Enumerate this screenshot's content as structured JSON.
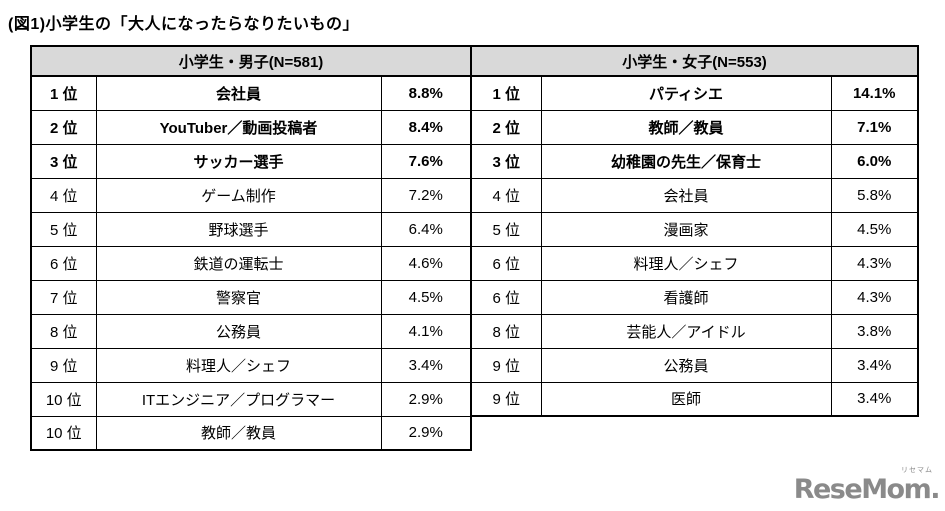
{
  "page": {
    "title": "(図1)小学生の「大人になったらなりたいもの」"
  },
  "colors": {
    "header_bg": "#d9d9d9",
    "border": "#000000",
    "logo_gray": "#8a8a8a"
  },
  "tables": [
    {
      "header": "小学生・男子(N=581)",
      "rows": [
        {
          "rank": "1 位",
          "job": "会社員",
          "pct": "8.8%",
          "bold": true
        },
        {
          "rank": "2 位",
          "job": "YouTuber／動画投稿者",
          "pct": "8.4%",
          "bold": true
        },
        {
          "rank": "3 位",
          "job": "サッカー選手",
          "pct": "7.6%",
          "bold": true
        },
        {
          "rank": "4 位",
          "job": "ゲーム制作",
          "pct": "7.2%",
          "bold": false
        },
        {
          "rank": "5 位",
          "job": "野球選手",
          "pct": "6.4%",
          "bold": false
        },
        {
          "rank": "6 位",
          "job": "鉄道の運転士",
          "pct": "4.6%",
          "bold": false
        },
        {
          "rank": "7 位",
          "job": "警察官",
          "pct": "4.5%",
          "bold": false
        },
        {
          "rank": "8 位",
          "job": "公務員",
          "pct": "4.1%",
          "bold": false
        },
        {
          "rank": "9 位",
          "job": "料理人／シェフ",
          "pct": "3.4%",
          "bold": false
        },
        {
          "rank": "10 位",
          "job": "ITエンジニア／プログラマー",
          "pct": "2.9%",
          "bold": false
        },
        {
          "rank": "10 位",
          "job": "教師／教員",
          "pct": "2.9%",
          "bold": false
        }
      ]
    },
    {
      "header": "小学生・女子(N=553)",
      "rows": [
        {
          "rank": "1 位",
          "job": "パティシエ",
          "pct": "14.1%",
          "bold": true
        },
        {
          "rank": "2 位",
          "job": "教師／教員",
          "pct": "7.1%",
          "bold": true
        },
        {
          "rank": "3 位",
          "job": "幼稚園の先生／保育士",
          "pct": "6.0%",
          "bold": true
        },
        {
          "rank": "4 位",
          "job": "会社員",
          "pct": "5.8%",
          "bold": false
        },
        {
          "rank": "5 位",
          "job": "漫画家",
          "pct": "4.5%",
          "bold": false
        },
        {
          "rank": "6 位",
          "job": "料理人／シェフ",
          "pct": "4.3%",
          "bold": false
        },
        {
          "rank": "6 位",
          "job": "看護師",
          "pct": "4.3%",
          "bold": false
        },
        {
          "rank": "8 位",
          "job": "芸能人／アイドル",
          "pct": "3.8%",
          "bold": false
        },
        {
          "rank": "9 位",
          "job": "公務員",
          "pct": "3.4%",
          "bold": false
        },
        {
          "rank": "9 位",
          "job": "医師",
          "pct": "3.4%",
          "bold": false
        }
      ]
    }
  ],
  "logo": {
    "text": "ReseMom.",
    "ruby": "リセマム"
  }
}
